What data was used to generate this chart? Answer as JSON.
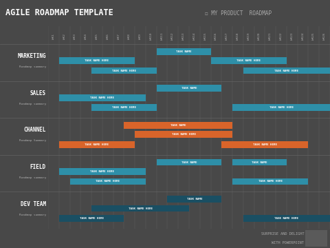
{
  "title": "AGILE ROADMAP TEMPLATE",
  "subtitle": "☐ MY PRODUCT  ROADMAP",
  "bg_color": "#484848",
  "header_bg": "#3c3c3c",
  "grid_color": "#5a5a5a",
  "weeks": [
    "WK1",
    "WK2",
    "WK3",
    "WK4",
    "WK5",
    "WK6",
    "WK7",
    "WK8",
    "WK9",
    "WK10",
    "WK11",
    "WK12",
    "WK13",
    "WK14",
    "WK15",
    "WK16",
    "WK17",
    "WK18",
    "WK19",
    "WK20",
    "WK21",
    "WK22",
    "WK23",
    "WK24",
    "WK25",
    "WK26"
  ],
  "sections": [
    {
      "name": "MARKETING",
      "sub": "Roadmap summary",
      "bars": [
        {
          "label": "TASK NAME",
          "start": 11,
          "end": 15,
          "color": "#2e8fa8",
          "row": 0
        },
        {
          "label": "TASK NAME HERE",
          "start": 2,
          "end": 8,
          "color": "#2e8fa8",
          "row": 1
        },
        {
          "label": "TASK NAME HERE",
          "start": 16,
          "end": 22,
          "color": "#2e8fa8",
          "row": 1
        },
        {
          "label": "TASK NAME HERE",
          "start": 5,
          "end": 10,
          "color": "#2e8fa8",
          "row": 2
        },
        {
          "label": "TASK NAME HERE",
          "start": 19,
          "end": 26,
          "color": "#2e8fa8",
          "row": 2
        }
      ]
    },
    {
      "name": "SALES",
      "sub": "Roadmap summary",
      "bars": [
        {
          "label": "TASK NAME",
          "start": 11,
          "end": 16,
          "color": "#2e8fa8",
          "row": 0
        },
        {
          "label": "TASK NAME HERE",
          "start": 2,
          "end": 9,
          "color": "#2e8fa8",
          "row": 1
        },
        {
          "label": "TASK NAME HERE",
          "start": 5,
          "end": 10,
          "color": "#2e8fa8",
          "row": 2
        },
        {
          "label": "TASK NAME HERE",
          "start": 18,
          "end": 26,
          "color": "#2e8fa8",
          "row": 2
        }
      ]
    },
    {
      "name": "CHANNEL",
      "sub": "Roadmap Summary",
      "bars": [
        {
          "label": "TASK NAME",
          "start": 8,
          "end": 17,
          "color": "#d9642a",
          "row": 0
        },
        {
          "label": "TASK NAME HERE",
          "start": 9,
          "end": 17,
          "color": "#d9642a",
          "row": 1
        },
        {
          "label": "TASK NAME HERE",
          "start": 2,
          "end": 8,
          "color": "#d9642a",
          "row": 2
        },
        {
          "label": "TASK NAME HERE",
          "start": 17,
          "end": 24,
          "color": "#d9642a",
          "row": 2
        }
      ]
    },
    {
      "name": "FIELD",
      "sub": "Roadmap summary",
      "bars": [
        {
          "label": "TASK NAME",
          "start": 11,
          "end": 16,
          "color": "#2e8fa8",
          "row": 0
        },
        {
          "label": "TASK NAME",
          "start": 18,
          "end": 22,
          "color": "#2e8fa8",
          "row": 0
        },
        {
          "label": "TASK NAME HERE",
          "start": 2,
          "end": 9,
          "color": "#2e8fa8",
          "row": 1
        },
        {
          "label": "TASK NAME HERE",
          "start": 3,
          "end": 9,
          "color": "#2e8fa8",
          "row": 2
        },
        {
          "label": "TASK NAME HERE",
          "start": 18,
          "end": 24,
          "color": "#2e8fa8",
          "row": 2
        }
      ]
    },
    {
      "name": "DEV TEAM",
      "sub": "Roadmap summary",
      "bars": [
        {
          "label": "TASK NAME",
          "start": 12,
          "end": 16,
          "color": "#1a4f63",
          "row": 0
        },
        {
          "label": "TASK NAME HERE",
          "start": 5,
          "end": 13,
          "color": "#1a4f63",
          "row": 1
        },
        {
          "label": "TASK NAME HERE",
          "start": 2,
          "end": 7,
          "color": "#1a4f63",
          "row": 2
        },
        {
          "label": "TASK NAME HERE",
          "start": 19,
          "end": 26,
          "color": "#1a4f63",
          "row": 2
        }
      ]
    }
  ],
  "footer_line1": "SURPRISE AND DELIGHT",
  "footer_line2": "WITH POWERPOINT",
  "text_color": "#ffffff",
  "muted_color": "#aaaaaa",
  "sep_color": "#636363"
}
